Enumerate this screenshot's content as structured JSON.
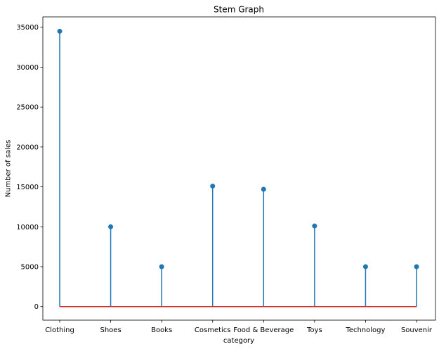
{
  "chart_data": {
    "type": "stem",
    "title": "Stem Graph",
    "xlabel": "category",
    "ylabel": "Number of sales",
    "categories": [
      "Clothing",
      "Shoes",
      "Books",
      "Cosmetics",
      "Food & Beverage",
      "Toys",
      "Technology",
      "Souvenir"
    ],
    "values": [
      34500,
      10000,
      5000,
      15100,
      14700,
      10100,
      5000,
      5000
    ],
    "ylim": [
      -1700,
      36300
    ],
    "yticks": [
      0,
      5000,
      10000,
      15000,
      20000,
      25000,
      30000,
      35000
    ],
    "ytick_labels": [
      "0",
      "5000",
      "10000",
      "15000",
      "20000",
      "25000",
      "30000",
      "35000"
    ],
    "grid": false,
    "legend": "none",
    "colors": {
      "stem": "#1f77b4",
      "baseline": "#d62728",
      "axes": "#000000"
    }
  }
}
